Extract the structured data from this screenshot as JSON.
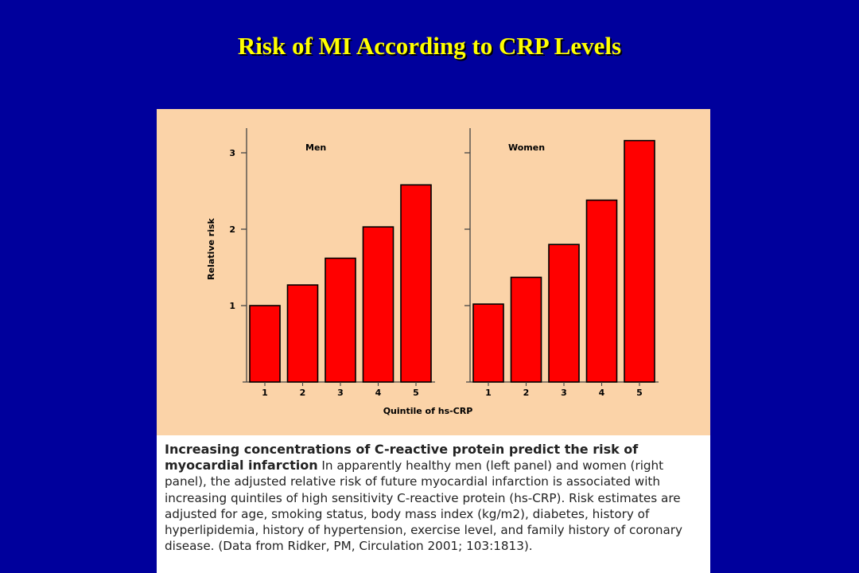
{
  "slide": {
    "title": "Risk of MI According to CRP Levels",
    "background_color": "#00009c",
    "title_color": "#ffff00"
  },
  "figure": {
    "background_color": "#fbd3a8",
    "bar_color": "#ff0000"
  },
  "chart_data": [
    {
      "type": "bar",
      "panel": "Men",
      "title": "Men",
      "categories": [
        "1",
        "2",
        "3",
        "4",
        "5"
      ],
      "values": [
        1.0,
        1.27,
        1.62,
        2.03,
        2.58
      ],
      "ylabel": "Relative risk",
      "xlabel": "Quintile of hs-CRP",
      "yticks": [
        1,
        2,
        3
      ],
      "ylim": [
        0,
        3.3
      ],
      "grid": false
    },
    {
      "type": "bar",
      "panel": "Women",
      "title": "Women",
      "categories": [
        "1",
        "2",
        "3",
        "4",
        "5"
      ],
      "values": [
        1.02,
        1.37,
        1.8,
        2.38,
        3.16
      ],
      "ylabel": "",
      "xlabel": "Quintile of hs-CRP",
      "yticks": [
        1,
        2,
        3
      ],
      "ylim": [
        0,
        3.3
      ],
      "grid": false
    }
  ],
  "caption": {
    "lead": "Increasing concentrations of C-reactive protein predict the risk of myocardial infarction",
    "body": "In apparently healthy men (left panel) and women (right panel), the adjusted relative risk of future myocardial infarction is associated with increasing quintiles of high sensitivity C-reactive protein (hs-CRP). Risk estimates are adjusted for age, smoking status, body mass index (kg/m2), diabetes, history of hyperlipidemia, history of hypertension, exercise level, and family history of coronary disease. (Data from Ridker, PM, Circulation 2001; 103:1813)."
  }
}
